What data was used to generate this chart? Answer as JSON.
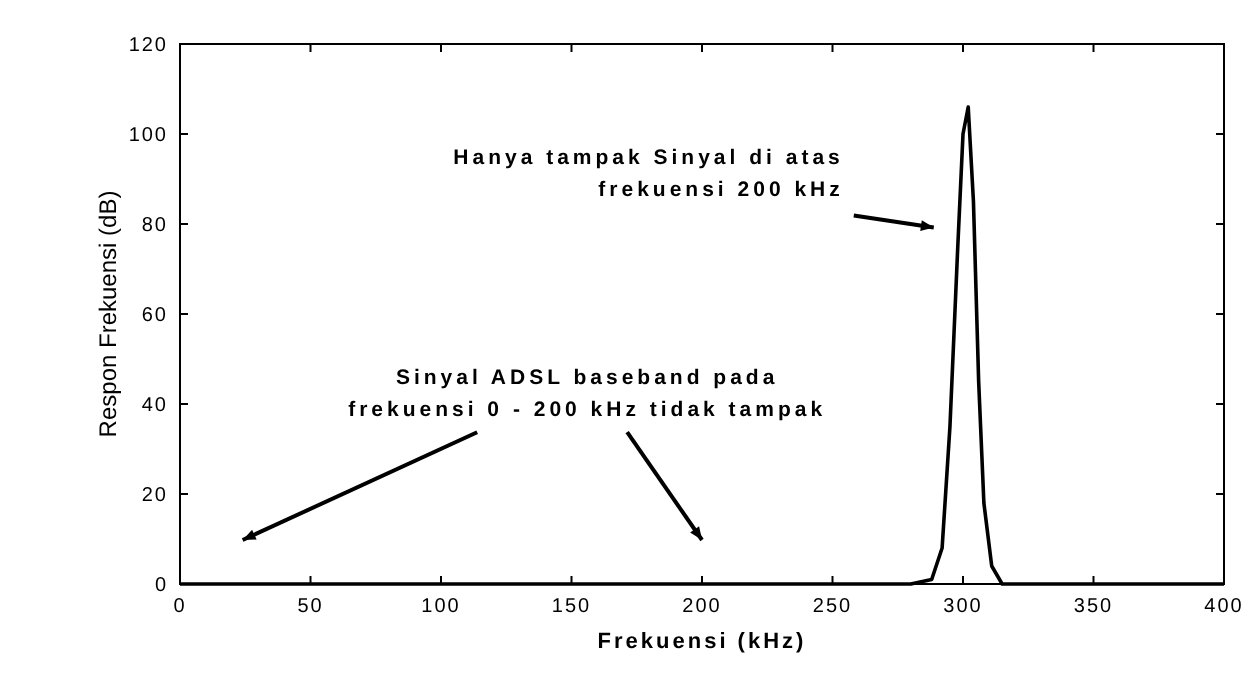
{
  "chart_data": {
    "type": "line",
    "xlabel": "Frekuensi (kHz)",
    "ylabel": "Respon Frekuensi (dB)",
    "xlim": [
      0,
      400
    ],
    "ylim": [
      0,
      120
    ],
    "xticks": [
      0,
      50,
      100,
      150,
      200,
      250,
      300,
      350,
      400
    ],
    "yticks": [
      0,
      20,
      40,
      60,
      80,
      100,
      120
    ],
    "grid": false,
    "marker": "none",
    "line_style": "solid",
    "series": [
      {
        "color": "#000000",
        "x": [
          0,
          280,
          288,
          292,
          295,
          298,
          300,
          302,
          304,
          306,
          308,
          311,
          315,
          400
        ],
        "values": [
          0,
          0,
          1,
          8,
          35,
          75,
          100,
          106,
          85,
          45,
          18,
          4,
          0,
          0
        ]
      }
    ],
    "annotations": [
      "Hanya tampak Sinyal di atas\nfrekuensi 200 kHz",
      "Sinyal ADSL baseband pada\nfrekuensi 0 - 200 kHz tidak tampak"
    ]
  }
}
